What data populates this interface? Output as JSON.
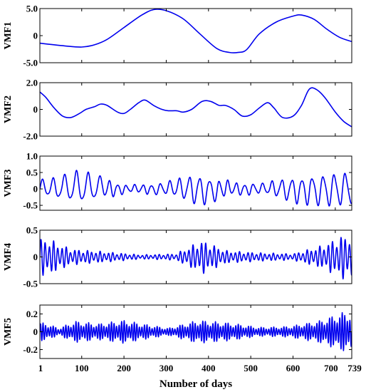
{
  "chart_data": {
    "type": "line",
    "xlabel": "Number of days",
    "xlim": [
      1,
      739
    ],
    "xticks": [
      1,
      100,
      200,
      300,
      400,
      500,
      600,
      700,
      739
    ],
    "xtick_labels": [
      "1",
      "100",
      "200",
      "300",
      "400",
      "500",
      "600",
      "700",
      "739"
    ],
    "line_color": "#0000ee",
    "panels": [
      {
        "ylabel": "VMF1",
        "ylim": [
          -5,
          5
        ],
        "yticks": [
          5,
          0,
          -5
        ],
        "ytick_labels": [
          "5.0",
          "0",
          "-5.0"
        ],
        "x": [
          1,
          60,
          100,
          130,
          160,
          200,
          240,
          270,
          300,
          340,
          380,
          420,
          450,
          470,
          490,
          520,
          560,
          600,
          620,
          650,
          680,
          710,
          739
        ],
        "y": [
          -1.4,
          -1.9,
          -2.1,
          -1.7,
          -0.7,
          1.5,
          3.7,
          4.8,
          4.6,
          3.1,
          0.3,
          -2.4,
          -3.1,
          -3.1,
          -2.6,
          0.3,
          2.5,
          3.6,
          3.8,
          3.0,
          1.2,
          -0.3,
          -1.1
        ]
      },
      {
        "ylabel": "VMF2",
        "ylim": [
          -2,
          2
        ],
        "yticks": [
          2,
          0,
          -2
        ],
        "ytick_labels": [
          "2.0",
          "0",
          "-2.0"
        ],
        "x": [
          1,
          15,
          35,
          55,
          75,
          95,
          110,
          130,
          145,
          160,
          185,
          200,
          215,
          235,
          250,
          270,
          290,
          305,
          325,
          340,
          360,
          385,
          405,
          425,
          440,
          460,
          480,
          500,
          520,
          540,
          555,
          575,
          600,
          620,
          638,
          655,
          675,
          700,
          720,
          739
        ],
        "y": [
          1.3,
          0.9,
          0.1,
          -0.5,
          -0.6,
          -0.3,
          0.0,
          0.2,
          0.4,
          0.3,
          -0.2,
          -0.3,
          0.0,
          0.5,
          0.7,
          0.3,
          0.0,
          -0.1,
          -0.1,
          -0.2,
          0.0,
          0.6,
          0.6,
          0.3,
          0.3,
          0.0,
          -0.5,
          -0.4,
          0.1,
          0.5,
          0.1,
          -0.6,
          -0.5,
          0.3,
          1.5,
          1.5,
          0.9,
          -0.2,
          -0.9,
          -1.3
        ]
      },
      {
        "ylabel": "VMF3",
        "ylim": [
          -0.65,
          1
        ],
        "yticks": [
          1,
          0.5,
          0,
          -0.5
        ],
        "ytick_labels": [
          "1.0",
          "0.5",
          "0",
          "-0.5"
        ],
        "segments": [
          {
            "from": 1,
            "to": 40,
            "period": 25,
            "amp": 0.3
          },
          {
            "from": 40,
            "to": 150,
            "period": 28,
            "amp": 0.6
          },
          {
            "from": 150,
            "to": 270,
            "period": 20,
            "amp": 0.12
          },
          {
            "from": 270,
            "to": 330,
            "period": 22,
            "amp": 0.22
          },
          {
            "from": 330,
            "to": 420,
            "period": 24,
            "amp": 0.55
          },
          {
            "from": 420,
            "to": 500,
            "period": 20,
            "amp": 0.22
          },
          {
            "from": 500,
            "to": 560,
            "period": 22,
            "amp": 0.18
          },
          {
            "from": 560,
            "to": 640,
            "period": 24,
            "amp": 0.45
          },
          {
            "from": 640,
            "to": 739,
            "period": 26,
            "amp": 0.6
          }
        ]
      },
      {
        "ylabel": "VMF4",
        "ylim": [
          -0.5,
          0.5
        ],
        "yticks": [
          0.5,
          0,
          -0.5
        ],
        "ytick_labels": [
          "0.5",
          "0",
          "-0.5"
        ],
        "segments": [
          {
            "from": 1,
            "to": 40,
            "period": 10,
            "amp": 0.35
          },
          {
            "from": 40,
            "to": 110,
            "period": 10,
            "amp": 0.15
          },
          {
            "from": 110,
            "to": 200,
            "period": 10,
            "amp": 0.1
          },
          {
            "from": 200,
            "to": 280,
            "period": 10,
            "amp": 0.04
          },
          {
            "from": 280,
            "to": 365,
            "period": 10,
            "amp": 0.06
          },
          {
            "from": 365,
            "to": 405,
            "period": 10,
            "amp": 0.32
          },
          {
            "from": 405,
            "to": 480,
            "period": 10,
            "amp": 0.12
          },
          {
            "from": 480,
            "to": 560,
            "period": 10,
            "amp": 0.08
          },
          {
            "from": 560,
            "to": 640,
            "period": 10,
            "amp": 0.06
          },
          {
            "from": 640,
            "to": 700,
            "period": 10,
            "amp": 0.22
          },
          {
            "from": 700,
            "to": 739,
            "period": 10,
            "amp": 0.42
          }
        ]
      },
      {
        "ylabel": "VMF5",
        "ylim": [
          -0.3,
          0.3
        ],
        "yticks": [
          0.2,
          0,
          -0.2
        ],
        "ytick_labels": [
          "0.2",
          "0",
          "-0.2"
        ],
        "segments": [
          {
            "from": 1,
            "to": 30,
            "period": 6,
            "amp": 0.1
          },
          {
            "from": 30,
            "to": 60,
            "period": 6,
            "amp": 0.04
          },
          {
            "from": 60,
            "to": 110,
            "period": 6,
            "amp": 0.12
          },
          {
            "from": 110,
            "to": 170,
            "period": 6,
            "amp": 0.09
          },
          {
            "from": 170,
            "to": 230,
            "period": 6,
            "amp": 0.13
          },
          {
            "from": 230,
            "to": 280,
            "period": 6,
            "amp": 0.08
          },
          {
            "from": 280,
            "to": 330,
            "period": 6,
            "amp": 0.04
          },
          {
            "from": 330,
            "to": 420,
            "period": 6,
            "amp": 0.13
          },
          {
            "from": 420,
            "to": 480,
            "period": 6,
            "amp": 0.1
          },
          {
            "from": 480,
            "to": 560,
            "period": 6,
            "amp": 0.05
          },
          {
            "from": 560,
            "to": 620,
            "period": 6,
            "amp": 0.06
          },
          {
            "from": 620,
            "to": 700,
            "period": 6,
            "amp": 0.12
          },
          {
            "from": 700,
            "to": 739,
            "period": 6,
            "amp": 0.22
          }
        ]
      }
    ]
  }
}
